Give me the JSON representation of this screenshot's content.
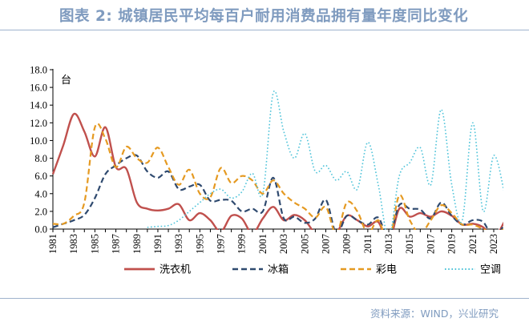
{
  "header": {
    "title": "图表 2: 城镇居民平均每百户耐用消费品拥有量年度同比变化"
  },
  "footer": {
    "source": "资料来源：WIND，兴业研究"
  },
  "chart_data": {
    "type": "line",
    "unit_label": "台",
    "ylim": [
      0,
      18
    ],
    "yticks": [
      "0.0",
      "2.0",
      "4.0",
      "6.0",
      "8.0",
      "10.0",
      "12.0",
      "14.0",
      "16.0",
      "18.0"
    ],
    "xlim": [
      1981,
      2024
    ],
    "xticks": [
      "1981",
      "1983",
      "1985",
      "1987",
      "1989",
      "1991",
      "1993",
      "1995",
      "1997",
      "1999",
      "2001",
      "2003",
      "2005",
      "2007",
      "2009",
      "2011",
      "2013",
      "2015",
      "2017",
      "2019",
      "2021",
      "2023"
    ],
    "legend_position": "bottom",
    "series": [
      {
        "name": "洗衣机",
        "color": "#c0504d",
        "dash": "solid",
        "points": [
          [
            1981,
            6.2
          ],
          [
            1982,
            9.5
          ],
          [
            1983,
            13.0
          ],
          [
            1984,
            11.0
          ],
          [
            1985,
            8.2
          ],
          [
            1986,
            11.5
          ],
          [
            1987,
            7.0
          ],
          [
            1988,
            6.8
          ],
          [
            1989,
            3.0
          ],
          [
            1990,
            2.3
          ],
          [
            1991,
            2.1
          ],
          [
            1992,
            2.3
          ],
          [
            1993,
            2.8
          ],
          [
            1994,
            1.0
          ],
          [
            1995,
            1.8
          ],
          [
            1996,
            1.0
          ],
          [
            1997,
            -0.3
          ],
          [
            1998,
            1.5
          ],
          [
            1999,
            1.2
          ],
          [
            2000,
            -0.5
          ],
          [
            2001,
            1.2
          ],
          [
            2002,
            2.5
          ],
          [
            2003,
            1.0
          ],
          [
            2004,
            1.6
          ],
          [
            2005,
            1.0
          ],
          [
            2006,
            -0.5
          ],
          [
            2007,
            -1.0
          ],
          [
            2008,
            -0.5
          ],
          [
            2009,
            1.5
          ],
          [
            2010,
            1.0
          ],
          [
            2011,
            0.3
          ],
          [
            2012,
            0.8
          ],
          [
            2013,
            -1.5
          ],
          [
            2014,
            2.3
          ],
          [
            2015,
            1.4
          ],
          [
            2016,
            1.8
          ],
          [
            2017,
            1.4
          ],
          [
            2018,
            2.0
          ],
          [
            2019,
            1.5
          ],
          [
            2020,
            0.5
          ],
          [
            2021,
            0.6
          ],
          [
            2022,
            0.2
          ],
          [
            2023,
            -1.0
          ],
          [
            2024,
            0.8
          ]
        ]
      },
      {
        "name": "冰箱",
        "color": "#2f4a6f",
        "dash": "dashed",
        "points": [
          [
            1981,
            0.2
          ],
          [
            1982,
            0.6
          ],
          [
            1983,
            1.0
          ],
          [
            1984,
            1.6
          ],
          [
            1985,
            3.5
          ],
          [
            1986,
            6.2
          ],
          [
            1987,
            7.2
          ],
          [
            1988,
            8.0
          ],
          [
            1989,
            8.3
          ],
          [
            1990,
            6.5
          ],
          [
            1991,
            5.8
          ],
          [
            1992,
            6.5
          ],
          [
            1993,
            4.5
          ],
          [
            1994,
            4.8
          ],
          [
            1995,
            5.0
          ],
          [
            1996,
            3.2
          ],
          [
            1997,
            3.3
          ],
          [
            1998,
            3.2
          ],
          [
            1999,
            2.0
          ],
          [
            2000,
            2.3
          ],
          [
            2001,
            2.0
          ],
          [
            2002,
            5.8
          ],
          [
            2003,
            1.2
          ],
          [
            2004,
            1.4
          ],
          [
            2005,
            0.7
          ],
          [
            2006,
            1.2
          ],
          [
            2007,
            3.3
          ],
          [
            2008,
            -0.5
          ],
          [
            2009,
            1.5
          ],
          [
            2010,
            1.0
          ],
          [
            2011,
            0.5
          ],
          [
            2012,
            1.3
          ],
          [
            2013,
            -1.0
          ],
          [
            2014,
            2.7
          ],
          [
            2015,
            2.3
          ],
          [
            2016,
            2.2
          ],
          [
            2017,
            1.2
          ],
          [
            2018,
            3.0
          ],
          [
            2019,
            1.5
          ],
          [
            2020,
            0.5
          ],
          [
            2021,
            1.0
          ],
          [
            2022,
            0.8
          ],
          [
            2023,
            -1.0
          ],
          [
            2024,
            0.5
          ]
        ]
      },
      {
        "name": "彩电",
        "color": "#e59a22",
        "dash": "dashed",
        "points": [
          [
            1981,
            0.6
          ],
          [
            1982,
            0.6
          ],
          [
            1983,
            1.5
          ],
          [
            1984,
            3.0
          ],
          [
            1985,
            11.5
          ],
          [
            1986,
            10.2
          ],
          [
            1987,
            7.0
          ],
          [
            1988,
            9.3
          ],
          [
            1989,
            8.0
          ],
          [
            1990,
            7.5
          ],
          [
            1991,
            9.2
          ],
          [
            1992,
            7.0
          ],
          [
            1993,
            5.0
          ],
          [
            1994,
            6.7
          ],
          [
            1995,
            4.0
          ],
          [
            1996,
            3.6
          ],
          [
            1997,
            6.9
          ],
          [
            1998,
            5.2
          ],
          [
            1999,
            6.0
          ],
          [
            2000,
            5.5
          ],
          [
            2001,
            4.0
          ],
          [
            2002,
            5.5
          ],
          [
            2003,
            4.0
          ],
          [
            2004,
            3.0
          ],
          [
            2005,
            2.3
          ],
          [
            2006,
            1.3
          ],
          [
            2007,
            2.5
          ],
          [
            2008,
            -0.5
          ],
          [
            2009,
            3.0
          ],
          [
            2010,
            2.0
          ],
          [
            2011,
            -0.5
          ],
          [
            2012,
            1.0
          ],
          [
            2013,
            -1.5
          ],
          [
            2014,
            3.8
          ],
          [
            2015,
            1.0
          ],
          [
            2016,
            -0.5
          ],
          [
            2017,
            1.0
          ],
          [
            2018,
            2.7
          ],
          [
            2019,
            1.8
          ],
          [
            2020,
            0.5
          ],
          [
            2021,
            0.5
          ],
          [
            2022,
            0.0
          ],
          [
            2023,
            -0.5
          ],
          [
            2024,
            0.0
          ]
        ]
      },
      {
        "name": "空调",
        "color": "#4ec3d9",
        "dash": "dotted",
        "points": [
          [
            1990,
            0.2
          ],
          [
            1991,
            0.3
          ],
          [
            1992,
            0.4
          ],
          [
            1993,
            1.0
          ],
          [
            1994,
            2.0
          ],
          [
            1995,
            3.0
          ],
          [
            1996,
            4.0
          ],
          [
            1997,
            4.5
          ],
          [
            1998,
            3.5
          ],
          [
            1999,
            4.2
          ],
          [
            2000,
            6.3
          ],
          [
            2001,
            4.0
          ],
          [
            2002,
            15.4
          ],
          [
            2003,
            11.0
          ],
          [
            2004,
            8.0
          ],
          [
            2005,
            10.8
          ],
          [
            2006,
            6.5
          ],
          [
            2007,
            7.2
          ],
          [
            2008,
            5.5
          ],
          [
            2009,
            6.5
          ],
          [
            2010,
            4.5
          ],
          [
            2011,
            9.8
          ],
          [
            2012,
            5.0
          ],
          [
            2013,
            -1.0
          ],
          [
            2014,
            6.0
          ],
          [
            2015,
            7.5
          ],
          [
            2016,
            9.2
          ],
          [
            2017,
            5.0
          ],
          [
            2018,
            13.5
          ],
          [
            2019,
            5.0
          ],
          [
            2020,
            1.0
          ],
          [
            2021,
            12.0
          ],
          [
            2022,
            2.0
          ],
          [
            2023,
            8.3
          ],
          [
            2024,
            4.2
          ]
        ]
      }
    ]
  }
}
